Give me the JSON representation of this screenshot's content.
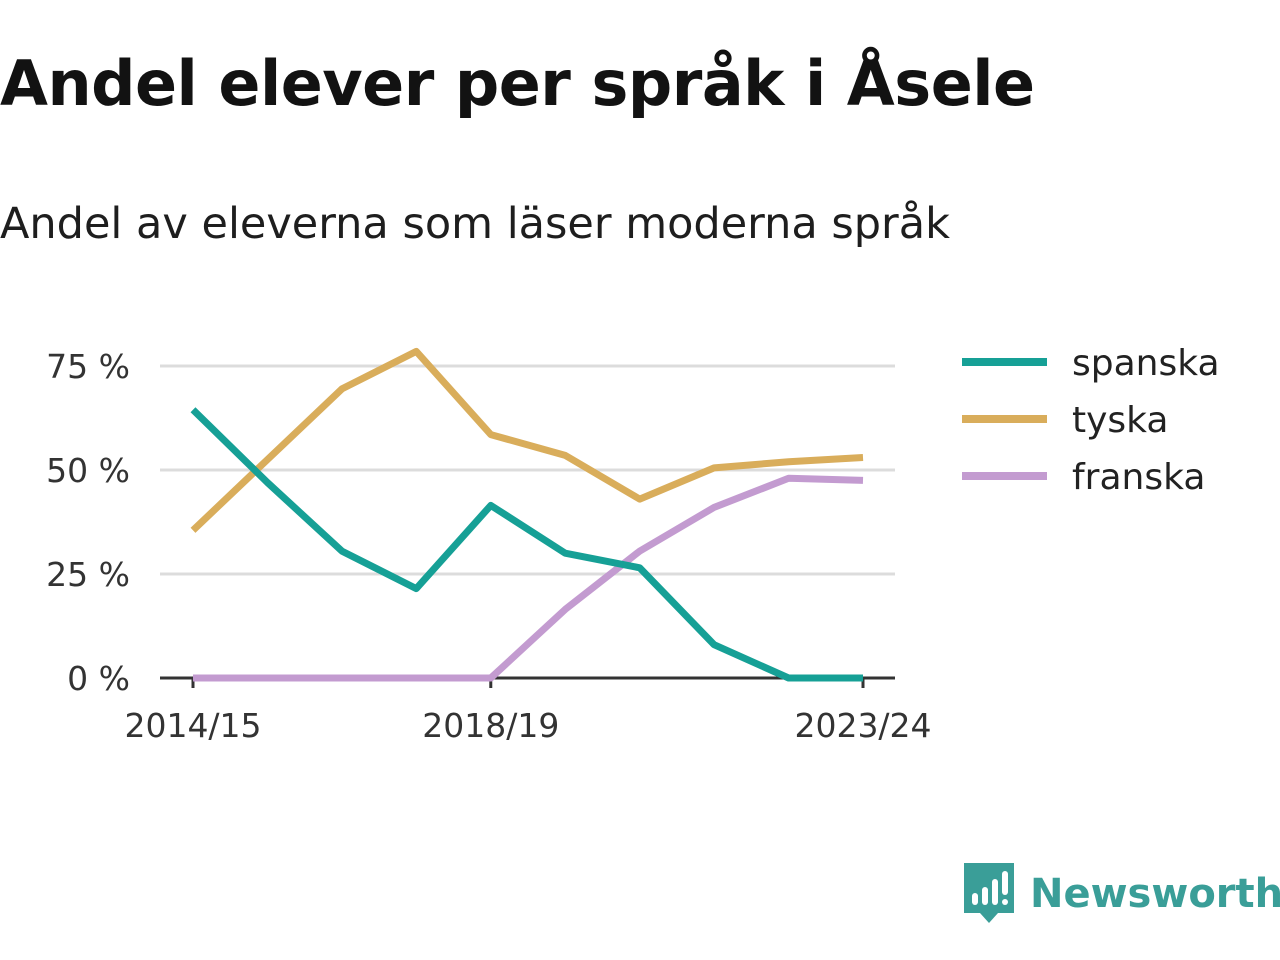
{
  "header": {
    "title": "Andel elever per språk i Åsele",
    "subtitle": "Andel av eleverna som läser moderna språk"
  },
  "brand": {
    "name": "Newsworthy",
    "color": "#3a9e98"
  },
  "chart_data": {
    "type": "line",
    "title": "Andel elever per språk i Åsele",
    "subtitle": "Andel av eleverna som läser moderna språk",
    "x": [
      "2014/15",
      "2015/16",
      "2016/17",
      "2017/18",
      "2018/19",
      "2019/20",
      "2020/21",
      "2021/22",
      "2022/23",
      "2023/24"
    ],
    "x_tick_labels": [
      "2014/15",
      "2018/19",
      "2023/24"
    ],
    "y_ticks": [
      0,
      25,
      50,
      75
    ],
    "y_tick_labels": [
      "0 %",
      "25 %",
      "50 %",
      "75 %"
    ],
    "ylim": [
      0,
      80
    ],
    "grid": true,
    "legend_position": "right",
    "series": [
      {
        "name": "spanska",
        "color": "#16a096",
        "values": [
          64.5,
          47,
          30.5,
          21.5,
          41.5,
          30,
          26.5,
          8,
          0,
          0
        ]
      },
      {
        "name": "tyska",
        "color": "#d9ad5b",
        "values": [
          35.5,
          52.5,
          69.5,
          78.5,
          58.5,
          53.5,
          43,
          50.5,
          52,
          53
        ]
      },
      {
        "name": "franska",
        "color": "#c39bd0",
        "values": [
          0,
          0,
          0,
          0,
          0,
          16.5,
          30.5,
          41,
          48,
          47.5
        ]
      }
    ]
  }
}
